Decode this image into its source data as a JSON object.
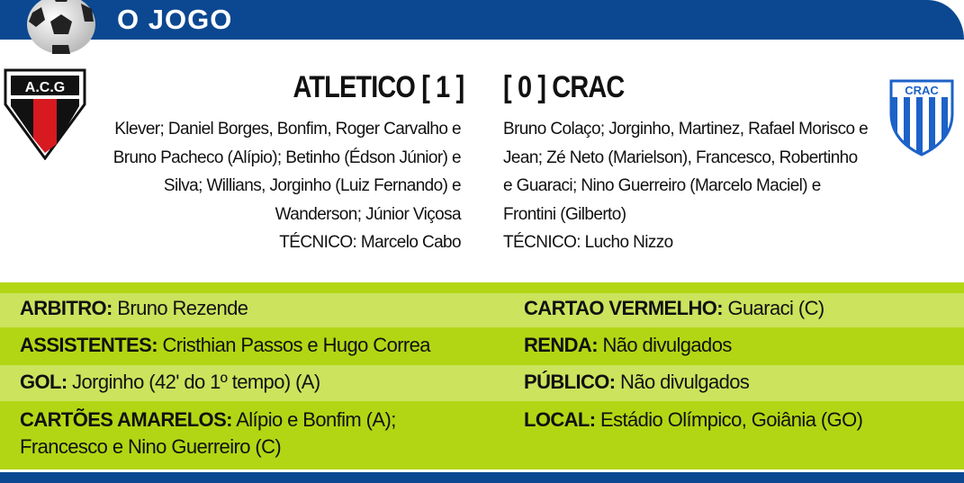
{
  "header": {
    "title": "O JOGO",
    "icon": "soccer-ball-icon",
    "color": "#0b4891"
  },
  "home": {
    "name": "ATLETICO [ 1 ]",
    "crest_text": "A.C.G",
    "lineup": [
      "Klever; Daniel Borges, Bonfim, Roger Carvalho e",
      "Bruno Pacheco (Alípio); Betinho (Édson Júnior) e",
      "Silva; Willians, Jorginho (Luiz Fernando) e",
      "Wanderson; Júnior Viçosa",
      "TÉCNICO: Marcelo Cabo"
    ]
  },
  "away": {
    "name": "[ 0 ] CRAC",
    "crest_text": "CRAC",
    "lineup": [
      "Bruno Colaço; Jorginho, Martinez, Rafael Morisco e",
      "Jean; Zé Neto (Marielson), Francesco, Robertinho",
      "e Guaraci; Nino Guerreiro (Marcelo Maciel) e",
      "Frontini (Gilberto)",
      "TÉCNICO: Lucho Nizzo"
    ]
  },
  "info": {
    "left": [
      {
        "label": "ARBITRO:",
        "value": "Bruno Rezende"
      },
      {
        "label": "ASSISTENTES:",
        "value": "Cristhian Passos e Hugo Correa"
      },
      {
        "label": "GOL:",
        "value": "Jorginho (42' do 1º tempo) (A)"
      },
      {
        "label": "CARTÕES AMARELOS:",
        "value": "Alípio e Bonfim (A);",
        "value2": "Francesco e Nino Guerreiro (C)"
      }
    ],
    "right": [
      {
        "label": "CARTAO VERMELHO:",
        "value": "Guaraci (C)"
      },
      {
        "label": "RENDA:",
        "value": "Não divulgados"
      },
      {
        "label": "PÚBLICO:",
        "value": "Não divulgados"
      },
      {
        "label": "LOCAL:",
        "value": "Estádio Olímpico, Goiânia (GO)"
      }
    ]
  }
}
